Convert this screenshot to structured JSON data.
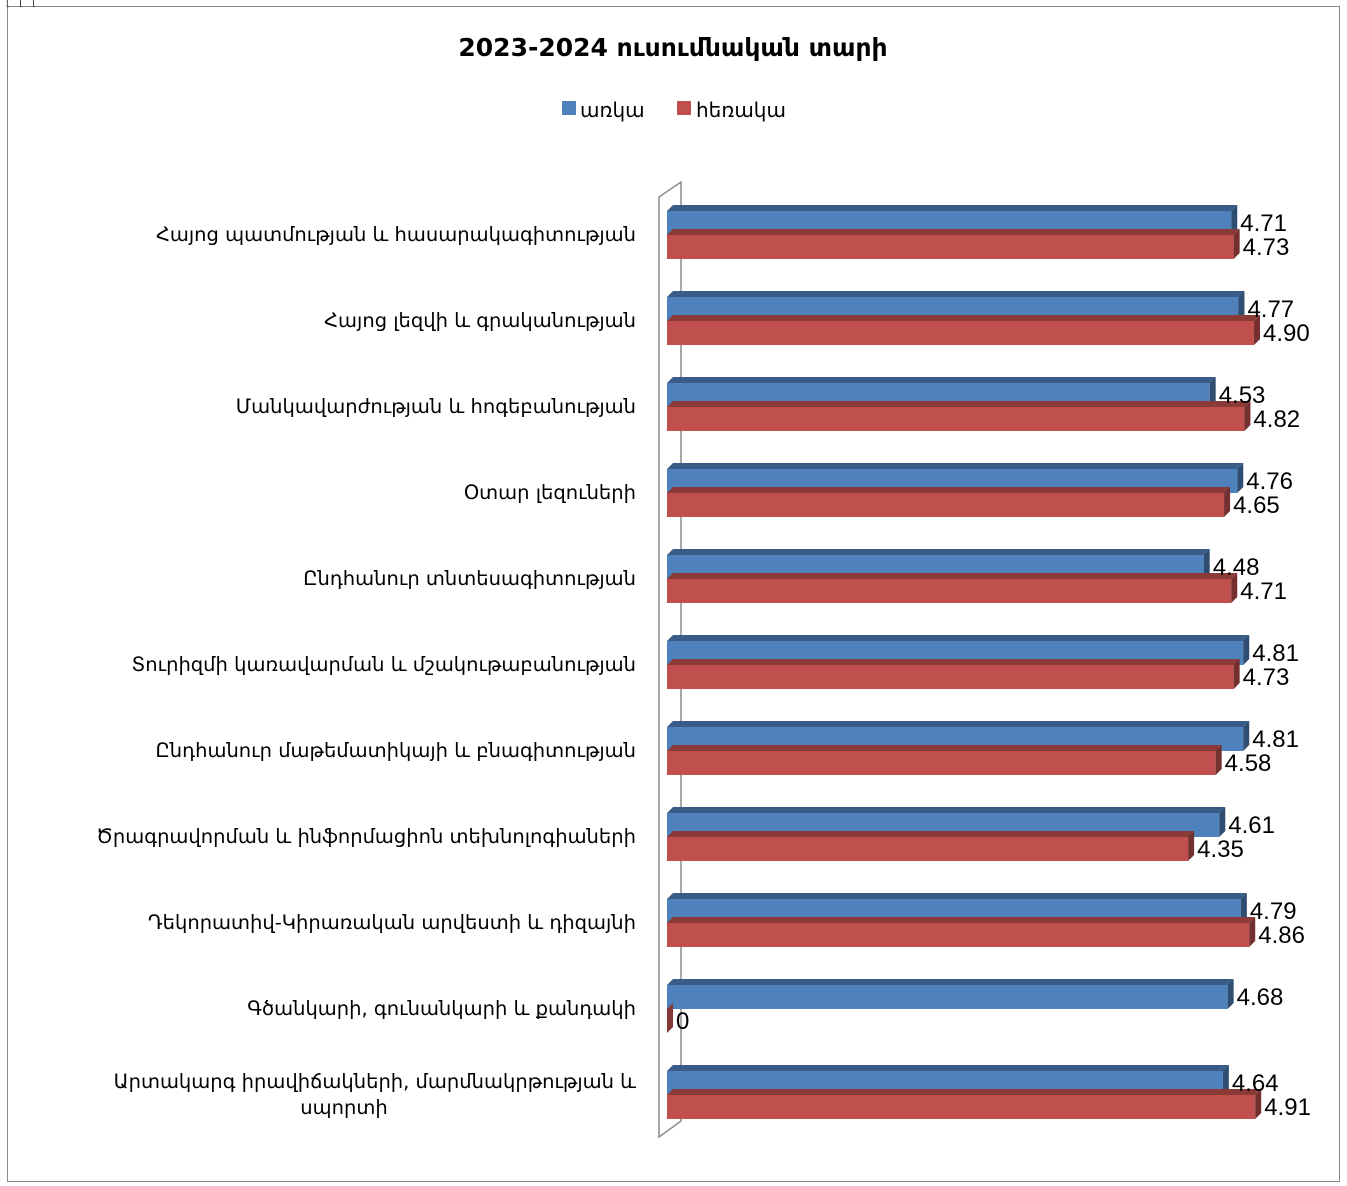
{
  "corner_marks": "[ [ [",
  "chart_data": {
    "type": "bar",
    "orientation": "horizontal",
    "three_d": true,
    "title": "2023-2024 ուսումնական տարի",
    "xlabel": "",
    "ylabel": "",
    "legend_position": "top",
    "xlim": [
      0,
      5
    ],
    "grid": false,
    "categories": [
      "Հայոց պատմության և հասարակագիտության",
      "Հայոց լեզվի և գրականության",
      "Մանկավարժության և հոգեբանության",
      "Օտար լեզուների",
      "Ընդհանուր տնտեսագիտության",
      "Տուրիզմի կառավարման և մշակութաբանության",
      "Ընդհանուր մաթեմատիկայի և բնագիտության",
      "Ծրագրավորման և ինֆորմացիոն տեխնոլոգիաների",
      "Դեկորատիվ-Կիրառական արվեստի և դիզայնի",
      "Գծանկարի, գունանկարի և քանդակի",
      "Արտակարգ իրավիճակների, մարմնակրթության և սպորտի"
    ],
    "category_lines": [
      [
        "Հայոց պատմության և հասարակագիտության"
      ],
      [
        "Հայոց լեզվի և գրականության"
      ],
      [
        "Մանկավարժության և հոգեբանության"
      ],
      [
        "Օտար լեզուների"
      ],
      [
        "Ընդհանուր տնտեսագիտության"
      ],
      [
        "Տուրիզմի կառավարման և մշակութաբանության"
      ],
      [
        "Ընդհանուր մաթեմատիկայի և բնագիտության"
      ],
      [
        "Ծրագրավորման և ինֆորմացիոն տեխնոլոգիաների"
      ],
      [
        "Դեկորատիվ-Կիրառական արվեստի և դիզայնի"
      ],
      [
        "Գծանկարի, գունանկարի և քանդակի"
      ],
      [
        "Արտակարգ իրավիճակների, մարմնակրթության և",
        "սպորտի"
      ]
    ],
    "series": [
      {
        "name": "առկա",
        "color": "#4f81bd",
        "values": [
          4.71,
          4.77,
          4.53,
          4.76,
          4.48,
          4.81,
          4.81,
          4.61,
          4.79,
          4.68,
          4.64
        ],
        "labels": [
          "4.71",
          "4.77",
          "4.53",
          "4.76",
          "4.48",
          "4.81",
          "4.81",
          "4.61",
          "4.79",
          "4.68",
          "4.64"
        ]
      },
      {
        "name": "հեռակա",
        "color": "#c0504d",
        "values": [
          4.73,
          4.9,
          4.82,
          4.65,
          4.71,
          4.73,
          4.58,
          4.35,
          4.86,
          0,
          4.91
        ],
        "labels": [
          "4.73",
          "4.90",
          "4.82",
          "4.65",
          "4.71",
          "4.73",
          "4.58",
          "4.35",
          "4.86",
          "0",
          "4.91"
        ]
      }
    ]
  }
}
